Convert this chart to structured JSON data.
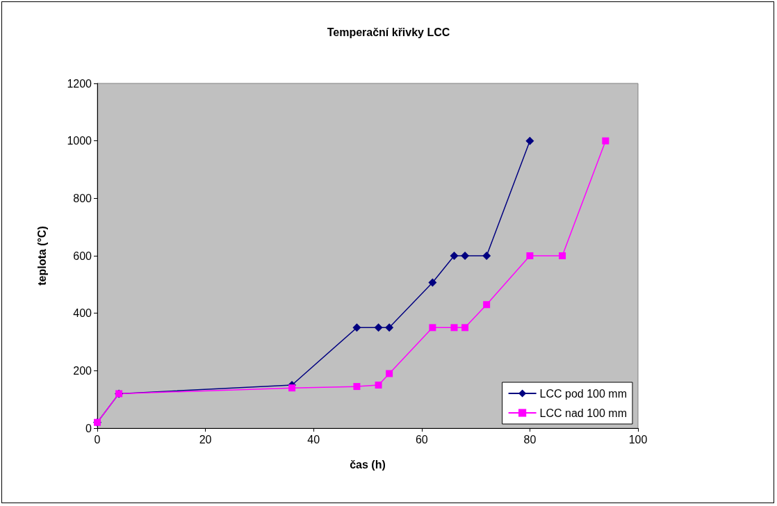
{
  "chart_data": {
    "type": "line",
    "title": "Temperační křivky LCC",
    "xlabel": "čas (h)",
    "ylabel": "teplota (°C)",
    "xlim": [
      0,
      100
    ],
    "xticks": [
      0,
      20,
      40,
      60,
      80,
      100
    ],
    "ylim": [
      0,
      1200
    ],
    "yticks": [
      0,
      200,
      400,
      600,
      800,
      1000,
      1200
    ],
    "grid": false,
    "legend": "bottom right",
    "line_style": "solid",
    "series": [
      {
        "name": "LCC pod 100 mm",
        "color": "#000080",
        "marker": "diamond",
        "x": [
          0,
          4,
          36,
          48,
          52,
          54,
          62,
          66,
          68,
          72,
          80
        ],
        "values": [
          20,
          120,
          150,
          350,
          350,
          350,
          507,
          600,
          600,
          600,
          1000
        ]
      },
      {
        "name": "LCC nad 100 mm",
        "color": "#ff00ff",
        "marker": "square",
        "x": [
          0,
          4,
          36,
          48,
          52,
          54,
          62,
          66,
          68,
          72,
          80,
          86,
          94
        ],
        "values": [
          20,
          120,
          140,
          145,
          150,
          190,
          350,
          350,
          350,
          430,
          600,
          600,
          1000
        ]
      }
    ]
  }
}
